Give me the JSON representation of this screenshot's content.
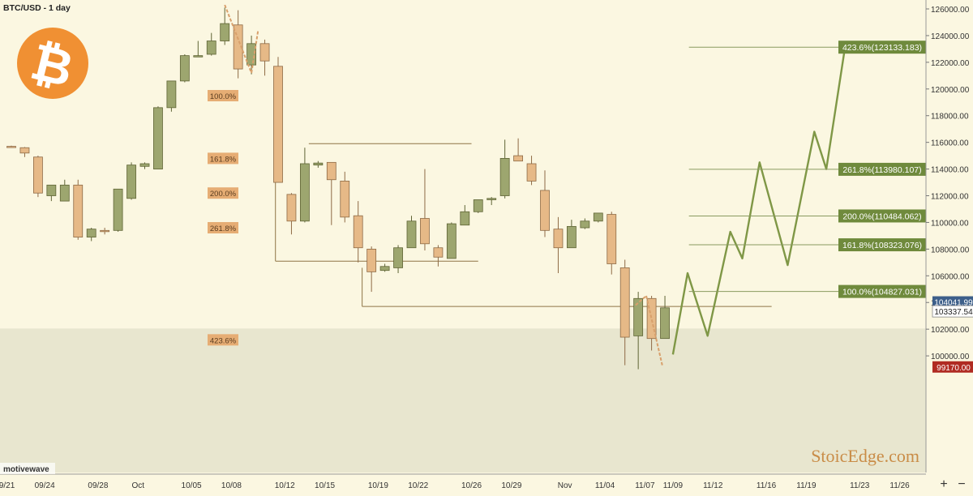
{
  "header": {
    "title": "BTC/USD - 1 day"
  },
  "watermark": {
    "brand": "StoicEdge.com",
    "platform": "motivewave"
  },
  "logo": {
    "symbol": "₿",
    "color": "#f09033"
  },
  "colors": {
    "up": "#9da66f",
    "down": "#e6b987",
    "upBorder": "#5f6435",
    "downBorder": "#8e6a45",
    "projection": "#7f9746",
    "fibLine": "#8a9a60",
    "fibLabel": "#6f8a3c",
    "leftLabel": "#e6ad74",
    "support": "#8e7446",
    "zone": "#e8e6cf"
  },
  "chart_data": {
    "type": "candlestick",
    "title": "BTC/USD - 1 day",
    "ylim": [
      97000,
      126400
    ],
    "y_ticks": [
      100000,
      102000,
      104000,
      106000,
      108000,
      110000,
      112000,
      114000,
      116000,
      118000,
      120000,
      122000,
      124000,
      126000
    ],
    "y_tick_labels": [
      "100000.00",
      "102000.00",
      "104000.00",
      "106000.00",
      "108000.00",
      "110000.00",
      "112000.00",
      "114000.00",
      "116000.00",
      "118000.00",
      "120000.00",
      "122000.00",
      "124000.00",
      "126000.00"
    ],
    "x_labels": [
      {
        "label": "09/21",
        "idx": -0.5
      },
      {
        "label": "09/24",
        "idx": 2.5
      },
      {
        "label": "09/28",
        "idx": 6.5
      },
      {
        "label": "Oct",
        "idx": 9.5
      },
      {
        "label": "10/05",
        "idx": 13.5
      },
      {
        "label": "10/08",
        "idx": 16.5
      },
      {
        "label": "10/12",
        "idx": 20.5
      },
      {
        "label": "10/15",
        "idx": 23.5
      },
      {
        "label": "10/19",
        "idx": 27.5
      },
      {
        "label": "10/22",
        "idx": 30.5
      },
      {
        "label": "10/26",
        "idx": 34.5
      },
      {
        "label": "10/29",
        "idx": 37.5
      },
      {
        "label": "Nov",
        "idx": 41.5
      },
      {
        "label": "11/04",
        "idx": 44.5
      },
      {
        "label": "11/07",
        "idx": 47.5
      },
      {
        "label": "11/09",
        "idx": 49.6
      },
      {
        "label": "11/12",
        "idx": 52.6
      },
      {
        "label": "11/16",
        "idx": 56.6
      },
      {
        "label": "11/19",
        "idx": 59.6
      },
      {
        "label": "11/23",
        "idx": 63.6
      },
      {
        "label": "11/26",
        "idx": 66.6
      }
    ],
    "candles": [
      {
        "o": 115700,
        "h": 115750,
        "l": 115600,
        "c": 115650
      },
      {
        "o": 115600,
        "h": 115650,
        "l": 114900,
        "c": 115200
      },
      {
        "o": 114900,
        "h": 115000,
        "l": 111900,
        "c": 112200
      },
      {
        "o": 112000,
        "h": 112800,
        "l": 111600,
        "c": 112800
      },
      {
        "o": 111600,
        "h": 113200,
        "l": 111600,
        "c": 112800
      },
      {
        "o": 112800,
        "h": 113200,
        "l": 108700,
        "c": 108900
      },
      {
        "o": 108900,
        "h": 109600,
        "l": 108600,
        "c": 109500
      },
      {
        "o": 109400,
        "h": 109600,
        "l": 109100,
        "c": 109350
      },
      {
        "o": 109400,
        "h": 112500,
        "l": 109300,
        "c": 112500
      },
      {
        "o": 111800,
        "h": 114500,
        "l": 111700,
        "c": 114300
      },
      {
        "o": 114200,
        "h": 114500,
        "l": 114000,
        "c": 114400
      },
      {
        "o": 114000,
        "h": 118700,
        "l": 114000,
        "c": 118600
      },
      {
        "o": 118600,
        "h": 120600,
        "l": 118300,
        "c": 120600
      },
      {
        "o": 120600,
        "h": 122600,
        "l": 120500,
        "c": 122500
      },
      {
        "o": 122400,
        "h": 123600,
        "l": 122400,
        "c": 122500
      },
      {
        "o": 122600,
        "h": 124200,
        "l": 122500,
        "c": 123600
      },
      {
        "o": 123600,
        "h": 126100,
        "l": 123300,
        "c": 124900
      },
      {
        "o": 124800,
        "h": 125900,
        "l": 120800,
        "c": 121500
      },
      {
        "o": 121800,
        "h": 124000,
        "l": 121100,
        "c": 123400
      },
      {
        "o": 123400,
        "h": 123700,
        "l": 121000,
        "c": 122100
      },
      {
        "o": 121700,
        "h": 122400,
        "l": 113000,
        "c": 113000
      },
      {
        "o": 112100,
        "h": 112200,
        "l": 109100,
        "c": 110100
      },
      {
        "o": 110100,
        "h": 115600,
        "l": 110000,
        "c": 114400
      },
      {
        "o": 114300,
        "h": 114600,
        "l": 114100,
        "c": 114450
      },
      {
        "o": 114500,
        "h": 114500,
        "l": 109800,
        "c": 113200
      },
      {
        "o": 113100,
        "h": 113800,
        "l": 110000,
        "c": 110400
      },
      {
        "o": 110500,
        "h": 111600,
        "l": 107000,
        "c": 108100
      },
      {
        "o": 108000,
        "h": 108200,
        "l": 104800,
        "c": 106300
      },
      {
        "o": 106400,
        "h": 106900,
        "l": 106300,
        "c": 106700
      },
      {
        "o": 106600,
        "h": 108300,
        "l": 106200,
        "c": 108100
      },
      {
        "o": 108100,
        "h": 110500,
        "l": 108100,
        "c": 110100
      },
      {
        "o": 110300,
        "h": 114000,
        "l": 107900,
        "c": 108400
      },
      {
        "o": 108100,
        "h": 108300,
        "l": 106700,
        "c": 107400
      },
      {
        "o": 107300,
        "h": 110000,
        "l": 107300,
        "c": 109900
      },
      {
        "o": 109800,
        "h": 111300,
        "l": 109800,
        "c": 110800
      },
      {
        "o": 110800,
        "h": 111600,
        "l": 110700,
        "c": 111700
      },
      {
        "o": 111700,
        "h": 111900,
        "l": 111300,
        "c": 111800
      },
      {
        "o": 112000,
        "h": 116200,
        "l": 111800,
        "c": 114800
      },
      {
        "o": 115000,
        "h": 116300,
        "l": 114800,
        "c": 114600
      },
      {
        "o": 114400,
        "h": 115000,
        "l": 112800,
        "c": 113100
      },
      {
        "o": 112400,
        "h": 113900,
        "l": 108900,
        "c": 109400
      },
      {
        "o": 109500,
        "h": 110400,
        "l": 106200,
        "c": 108100
      },
      {
        "o": 108100,
        "h": 110200,
        "l": 108100,
        "c": 109700
      },
      {
        "o": 109600,
        "h": 110300,
        "l": 109500,
        "c": 110100
      },
      {
        "o": 110100,
        "h": 110700,
        "l": 110000,
        "c": 110700
      },
      {
        "o": 110600,
        "h": 110800,
        "l": 106100,
        "c": 106900
      },
      {
        "o": 106600,
        "h": 107200,
        "l": 99300,
        "c": 101400
      },
      {
        "o": 101500,
        "h": 104800,
        "l": 99000,
        "c": 104300
      },
      {
        "o": 104300,
        "h": 104500,
        "l": 100400,
        "c": 101300
      },
      {
        "o": 101300,
        "h": 104500,
        "l": 101300,
        "c": 103600
      }
    ],
    "wave_pattern_highs": [
      {
        "from_idx": 16,
        "from_price": 126300,
        "to_idx": 18,
        "to_price": 121200
      },
      {
        "from_idx": 18,
        "from_price": 121200,
        "to_idx": 18.5,
        "to_price": 124400
      }
    ],
    "wave_pattern_lows": [
      {
        "from_idx": 46.8,
        "from_price": 103800,
        "to_idx": 47.6,
        "to_price": 104500
      },
      {
        "from_idx": 47.6,
        "from_price": 104500,
        "to_idx": 48.8,
        "to_price": 99300
      }
    ],
    "support_lines": [
      {
        "from_idx": 22.3,
        "to_idx": 34.5,
        "price": 115900
      },
      {
        "from_idx": 26.3,
        "to_idx": 57,
        "price": 103700
      },
      {
        "from_idx": 19.8,
        "to_idx": 35,
        "price": 107100
      }
    ],
    "support_verticals": [
      {
        "idx": 19.8,
        "from_price": 113000,
        "to_price": 107100
      },
      {
        "idx": 26.3,
        "from_price": 106600,
        "to_price": 103700
      }
    ],
    "projection_path": [
      {
        "idx": 49.6,
        "price": 100100
      },
      {
        "idx": 50.7,
        "price": 106200
      },
      {
        "idx": 52.2,
        "price": 101500
      },
      {
        "idx": 53.9,
        "price": 109300
      },
      {
        "idx": 54.8,
        "price": 107300
      },
      {
        "idx": 56.1,
        "price": 114500
      },
      {
        "idx": 58.2,
        "price": 106800
      },
      {
        "idx": 60.2,
        "price": 116800
      },
      {
        "idx": 61.1,
        "price": 114000
      },
      {
        "idx": 62.5,
        "price": 123100
      }
    ],
    "fib_targets": [
      {
        "ratio": "423.6%",
        "price": 123133.183,
        "label": "423.6%(123133.183)",
        "from_idx": 50.8
      },
      {
        "ratio": "261.8%",
        "price": 113980.107,
        "label": "261.8%(113980.107)",
        "from_idx": 50.8
      },
      {
        "ratio": "200.0%",
        "price": 110484.062,
        "label": "200.0%(110484.062)",
        "from_idx": 50.8
      },
      {
        "ratio": "161.8%",
        "price": 108323.076,
        "label": "161.8%(108323.076)",
        "from_idx": 50.8
      },
      {
        "ratio": "100.0%",
        "price": 104827.031,
        "label": "100.0%(104827.031)",
        "from_idx": 50.8
      }
    ],
    "left_fib_labels": [
      {
        "label": "100.0%",
        "price": 119500
      },
      {
        "label": "161.8%",
        "price": 114800
      },
      {
        "label": "200.0%",
        "price": 112200
      },
      {
        "label": "261.8%",
        "price": 109600
      },
      {
        "label": "423.6%",
        "price": 101200
      }
    ],
    "price_badges": [
      {
        "label": "104041.99",
        "price": 104042,
        "color": "#3d5f8a"
      },
      {
        "label": "103337.54",
        "price": 103338,
        "color": "#ffffff"
      },
      {
        "label": "99170.00",
        "price": 99170,
        "color": "#b02b22"
      }
    ],
    "zone": {
      "from_price": 97000,
      "to_price": 102050
    },
    "controls": {
      "zoom_in": "+",
      "zoom_out": "−"
    }
  }
}
